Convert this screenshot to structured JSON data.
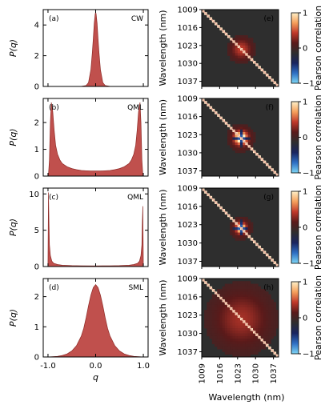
{
  "chart_data": [
    {
      "type": "area",
      "panel": "(a)",
      "annotation": "CW",
      "ylabel": "P(q)",
      "xlim": [
        -1.1,
        1.1
      ],
      "ylim": [
        0,
        5.0
      ],
      "yticks": [
        0,
        2,
        4
      ],
      "x": [
        -1.0,
        -0.6,
        -0.4,
        -0.3,
        -0.2,
        -0.15,
        -0.1,
        -0.07,
        -0.05,
        -0.03,
        -0.01,
        0.0,
        0.01,
        0.03,
        0.05,
        0.07,
        0.1,
        0.15,
        0.2,
        0.3,
        0.4,
        0.6,
        1.0
      ],
      "y": [
        0.0,
        0.0,
        0.0,
        0.01,
        0.06,
        0.25,
        1.1,
        2.2,
        3.1,
        4.1,
        4.7,
        4.85,
        4.7,
        4.1,
        3.1,
        2.2,
        1.1,
        0.25,
        0.06,
        0.01,
        0.0,
        0.0,
        0.0
      ]
    },
    {
      "type": "area",
      "panel": "(b)",
      "annotation": "QML",
      "ylabel": "P(q)",
      "xlim": [
        -1.1,
        1.1
      ],
      "ylim": [
        0,
        2.9
      ],
      "yticks": [
        0,
        1,
        2
      ],
      "x": [
        -0.99,
        -0.97,
        -0.95,
        -0.93,
        -0.9,
        -0.87,
        -0.84,
        -0.8,
        -0.75,
        -0.7,
        -0.6,
        -0.5,
        -0.4,
        -0.3,
        -0.2,
        -0.1,
        0.0,
        0.1,
        0.2,
        0.3,
        0.4,
        0.5,
        0.6,
        0.7,
        0.75,
        0.8,
        0.84,
        0.87,
        0.9,
        0.93,
        0.95,
        0.97,
        0.99
      ],
      "y": [
        0.05,
        0.6,
        2.0,
        2.75,
        2.4,
        1.7,
        1.15,
        0.82,
        0.6,
        0.47,
        0.35,
        0.28,
        0.24,
        0.21,
        0.2,
        0.19,
        0.19,
        0.19,
        0.2,
        0.21,
        0.24,
        0.28,
        0.35,
        0.47,
        0.6,
        0.82,
        1.15,
        1.7,
        2.4,
        2.75,
        2.0,
        0.6,
        0.05
      ]
    },
    {
      "type": "area",
      "panel": "(c)",
      "annotation": "QML",
      "ylabel": "P(q)",
      "xlim": [
        -1.1,
        1.1
      ],
      "ylim": [
        0,
        10.8
      ],
      "yticks": [
        0,
        5,
        10
      ],
      "x": [
        -1.0,
        -0.99,
        -0.98,
        -0.97,
        -0.95,
        -0.92,
        -0.88,
        -0.8,
        -0.7,
        -0.5,
        -0.3,
        0.0,
        0.3,
        0.5,
        0.7,
        0.8,
        0.88,
        0.92,
        0.95,
        0.97,
        0.98,
        0.99,
        1.0
      ],
      "y": [
        0.3,
        10.2,
        6.0,
        3.0,
        1.5,
        0.75,
        0.45,
        0.28,
        0.18,
        0.12,
        0.1,
        0.09,
        0.1,
        0.12,
        0.18,
        0.28,
        0.45,
        0.75,
        1.5,
        3.0,
        6.0,
        8.3,
        0.3
      ]
    },
    {
      "type": "area",
      "panel": "(d)",
      "annotation": "SML",
      "ylabel": "P(q)",
      "xlabel": "q",
      "xlim": [
        -1.1,
        1.1
      ],
      "ylim": [
        0,
        2.6
      ],
      "yticks": [
        0,
        1,
        2
      ],
      "xticks": [
        -1.0,
        0.0,
        1.0
      ],
      "xticklabels": [
        "-1.0",
        "0.0",
        "1.0"
      ],
      "x": [
        -1.0,
        -0.8,
        -0.7,
        -0.6,
        -0.5,
        -0.4,
        -0.3,
        -0.25,
        -0.2,
        -0.15,
        -0.1,
        -0.05,
        0.0,
        0.05,
        0.1,
        0.15,
        0.2,
        0.25,
        0.3,
        0.4,
        0.5,
        0.6,
        0.7,
        0.8,
        1.0
      ],
      "y": [
        0.0,
        0.02,
        0.05,
        0.1,
        0.2,
        0.38,
        0.7,
        0.95,
        1.3,
        1.7,
        2.05,
        2.3,
        2.4,
        2.3,
        2.05,
        1.7,
        1.3,
        0.95,
        0.7,
        0.38,
        0.2,
        0.1,
        0.05,
        0.02,
        0.0
      ]
    },
    {
      "type": "heatmap",
      "panel": "(e)",
      "ylabel": "Wavelength (nm)",
      "range_nm": [
        1009,
        1039
      ],
      "ticks": [
        1009,
        1016,
        1023,
        1030,
        1037
      ],
      "colorbar_label": "Pearson correlation",
      "colorbar_ticks": [
        1,
        0,
        -1
      ],
      "colorbar_ticklabels": [
        "1",
        "0",
        "−1"
      ],
      "diagonal": 1,
      "hotspots": [
        {
          "center_nm": 1024.5,
          "sigma_nm": 2.5,
          "value": 0.45
        }
      ]
    },
    {
      "type": "heatmap",
      "panel": "(f)",
      "ylabel": "Wavelength (nm)",
      "range_nm": [
        1009,
        1039
      ],
      "ticks": [
        1009,
        1016,
        1023,
        1030,
        1037
      ],
      "colorbar_label": "Pearson correlation",
      "colorbar_ticks": [
        1,
        0,
        -1
      ],
      "colorbar_ticklabels": [
        "1",
        "0",
        "−1"
      ],
      "diagonal": 1,
      "hotspots": [
        {
          "center_nm": 1024.3,
          "sigma_nm": 1.4,
          "value": 0.95
        },
        {
          "center_nm": 1024.3,
          "sigma_nm": 2.3,
          "value": 0.55
        }
      ],
      "anticorrelation_cross": {
        "center_nm": 1024.3,
        "half_width_nm": 0.7,
        "reach_nm": 3.4,
        "value": -0.75
      }
    },
    {
      "type": "heatmap",
      "panel": "(g)",
      "ylabel": "Wavelength (nm)",
      "range_nm": [
        1009,
        1039
      ],
      "ticks": [
        1009,
        1016,
        1023,
        1030,
        1037
      ],
      "colorbar_label": "Pearson correlation",
      "colorbar_ticks": [
        1,
        0,
        -1
      ],
      "colorbar_ticklabels": [
        "1",
        "0",
        "−1"
      ],
      "diagonal": 1,
      "hotspots": [
        {
          "center_nm": 1024.3,
          "sigma_nm": 1.1,
          "value": 0.95
        },
        {
          "center_nm": 1024.3,
          "sigma_nm": 2.0,
          "value": 0.45
        }
      ],
      "anticorrelation_cross": {
        "center_nm": 1024.3,
        "half_width_nm": 0.7,
        "reach_nm": 3.0,
        "value": -0.8
      }
    },
    {
      "type": "heatmap",
      "panel": "(h)",
      "ylabel": "Wavelength (nm)",
      "xlabel": "Wavelength (nm)",
      "range_nm": [
        1009,
        1039
      ],
      "ticks": [
        1009,
        1016,
        1023,
        1030,
        1037
      ],
      "colorbar_label": "Pearson correlation",
      "colorbar_ticks": [
        1,
        0,
        -1
      ],
      "colorbar_ticklabels": [
        "1",
        "0",
        "−1"
      ],
      "diagonal": 1,
      "hotspots": [
        {
          "center_nm": 1024.5,
          "sigma_nm": 6.5,
          "value": 0.35
        }
      ]
    }
  ],
  "colors": {
    "fill": "#c0504d",
    "edge": "#8e2a26",
    "background_map": "#2e2e2e",
    "diagonal": "#f2b7a4",
    "colormap": [
      "#7fd6f5",
      "#2f6fc4",
      "#1a2560",
      "#2e2e2e",
      "#5a1a1a",
      "#c0392b",
      "#f5a05c",
      "#fff0c8"
    ]
  }
}
